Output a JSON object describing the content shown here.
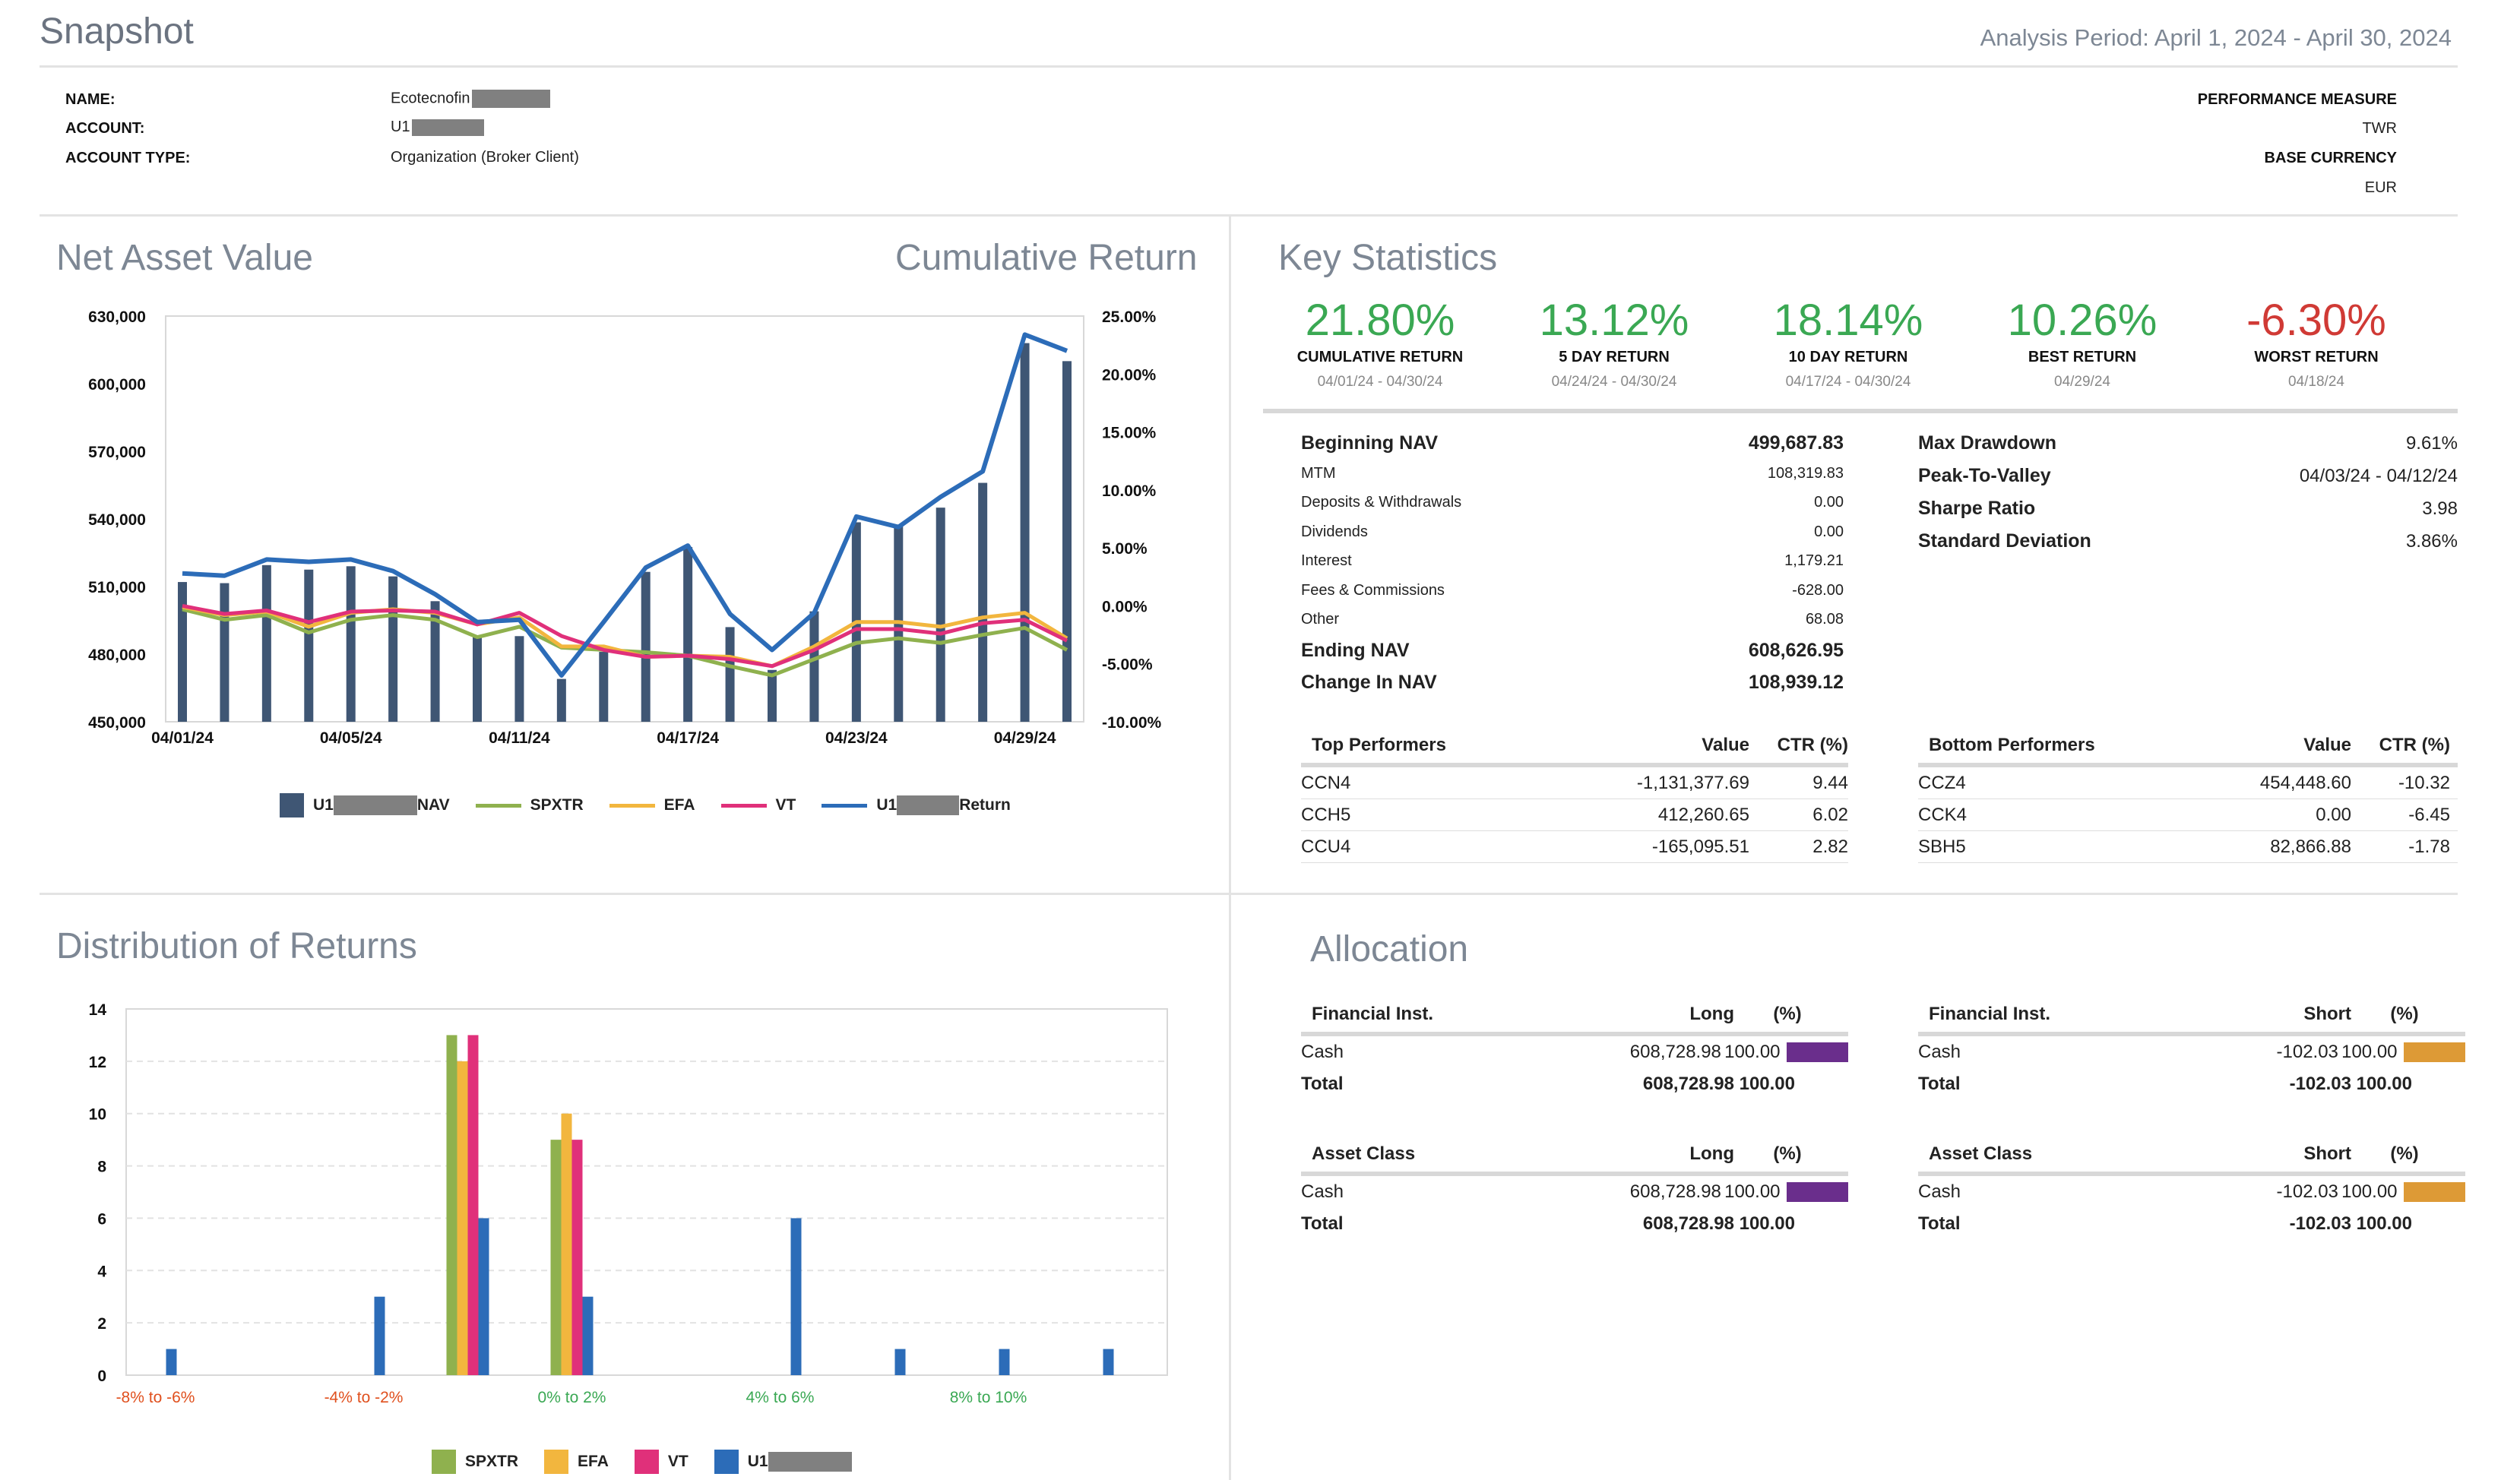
{
  "header": {
    "title": "Snapshot",
    "period": "Analysis Period: April 1, 2024 - April 30, 2024"
  },
  "account": {
    "name_label": "NAME:",
    "name_value": "Ecotecnofin",
    "account_label": "ACCOUNT:",
    "account_value": "U1",
    "type_label": "ACCOUNT TYPE:",
    "type_value": "Organization (Broker Client)",
    "perf_label": "PERFORMANCE MEASURE",
    "perf_value": "TWR",
    "currency_label": "BASE CURRENCY",
    "currency_value": "EUR"
  },
  "nav_chart": {
    "title_left": "Net Asset Value",
    "title_right": "Cumulative Return",
    "legend": [
      {
        "label_pre": "U1",
        "label_post": "NAV",
        "color": "#3f5674",
        "kind": "box"
      },
      {
        "label_pre": "SPXTR",
        "label_post": "",
        "color": "#8fb14e",
        "kind": "line"
      },
      {
        "label_pre": "EFA",
        "label_post": "",
        "color": "#f2b63e",
        "kind": "line"
      },
      {
        "label_pre": "VT",
        "label_post": "",
        "color": "#e0307a",
        "kind": "line"
      },
      {
        "label_pre": "U1",
        "label_post": "Return",
        "color": "#2c6cb8",
        "kind": "line"
      }
    ]
  },
  "key_stats": {
    "title": "Key Statistics",
    "tiles": [
      {
        "value": "21.80%",
        "label": "CUMULATIVE RETURN",
        "date": "04/01/24 - 04/30/24",
        "color": "#3aa853"
      },
      {
        "value": "13.12%",
        "label": "5 DAY RETURN",
        "date": "04/24/24 - 04/30/24",
        "color": "#3aa853"
      },
      {
        "value": "18.14%",
        "label": "10 DAY RETURN",
        "date": "04/17/24 - 04/30/24",
        "color": "#3aa853"
      },
      {
        "value": "10.26%",
        "label": "BEST RETURN",
        "date": "04/29/24",
        "color": "#3aa853"
      },
      {
        "value": "-6.30%",
        "label": "WORST RETURN",
        "date": "04/18/24",
        "color": "#d03a35"
      }
    ],
    "nav_rows": [
      {
        "label": "Beginning NAV",
        "value": "499,687.83",
        "bold": true
      },
      {
        "label": "MTM",
        "value": "108,319.83",
        "bold": false
      },
      {
        "label": "Deposits & Withdrawals",
        "value": "0.00",
        "bold": false
      },
      {
        "label": "Dividends",
        "value": "0.00",
        "bold": false
      },
      {
        "label": "Interest",
        "value": "1,179.21",
        "bold": false
      },
      {
        "label": "Fees & Commissions",
        "value": "-628.00",
        "bold": false
      },
      {
        "label": "Other",
        "value": "68.08",
        "bold": false
      },
      {
        "label": "Ending NAV",
        "value": "608,626.95",
        "bold": true
      },
      {
        "label": "Change In NAV",
        "value": "108,939.12",
        "bold": true
      }
    ],
    "risk_rows": [
      {
        "label": "Max Drawdown",
        "value": "9.61%"
      },
      {
        "label": "Peak-To-Valley",
        "value": "04/03/24 - 04/12/24"
      },
      {
        "label": "Sharpe Ratio",
        "value": "3.98"
      },
      {
        "label": "Standard Deviation",
        "value": "3.86%"
      }
    ],
    "top": {
      "headers": [
        "Top Performers",
        "Value",
        "CTR (%)"
      ],
      "rows": [
        [
          "CCN4",
          "-1,131,377.69",
          "9.44"
        ],
        [
          "CCH5",
          "412,260.65",
          "6.02"
        ],
        [
          "CCU4",
          "-165,095.51",
          "2.82"
        ]
      ]
    },
    "bottom": {
      "headers": [
        "Bottom Performers",
        "Value",
        "CTR (%)"
      ],
      "rows": [
        [
          "CCZ4",
          "454,448.60",
          "-10.32"
        ],
        [
          "CCK4",
          "0.00",
          "-6.45"
        ],
        [
          "SBH5",
          "82,866.88",
          "-1.78"
        ]
      ]
    }
  },
  "distribution": {
    "title": "Distribution of Returns",
    "legend": [
      {
        "label": "SPXTR",
        "color": "#8fb14e"
      },
      {
        "label": "EFA",
        "color": "#f2b63e"
      },
      {
        "label": "VT",
        "color": "#e0307a"
      },
      {
        "label": "U1",
        "color": "#2c6cb8"
      }
    ]
  },
  "allocation": {
    "title": "Allocation",
    "long_fin": {
      "headers": [
        "Financial Inst.",
        "Long",
        "(%)"
      ],
      "rows": [
        [
          "Cash",
          "608,728.98",
          "100.00"
        ]
      ],
      "total": [
        "Total",
        "608,728.98",
        "100.00"
      ],
      "color": "#6a2e8c"
    },
    "short_fin": {
      "headers": [
        "Financial Inst.",
        "Short",
        "(%)"
      ],
      "rows": [
        [
          "Cash",
          "-102.03",
          "100.00"
        ]
      ],
      "total": [
        "Total",
        "-102.03",
        "100.00"
      ],
      "color": "#dd9a36"
    },
    "long_asset": {
      "headers": [
        "Asset Class",
        "Long",
        "(%)"
      ],
      "rows": [
        [
          "Cash",
          "608,728.98",
          "100.00"
        ]
      ],
      "total": [
        "Total",
        "608,728.98",
        "100.00"
      ],
      "color": "#6a2e8c"
    },
    "short_asset": {
      "headers": [
        "Asset Class",
        "Short",
        "(%)"
      ],
      "rows": [
        [
          "Cash",
          "-102.03",
          "100.00"
        ]
      ],
      "total": [
        "Total",
        "-102.03",
        "100.00"
      ],
      "color": "#dd9a36"
    }
  },
  "chart_data": [
    {
      "type": "bar",
      "title": "Net Asset Value",
      "categories": [
        "04/01/24",
        "04/02/24",
        "04/03/24",
        "04/04/24",
        "04/05/24",
        "04/08/24",
        "04/09/24",
        "04/10/24",
        "04/11/24",
        "04/12/24",
        "04/15/24",
        "04/16/24",
        "04/17/24",
        "04/18/24",
        "04/19/24",
        "04/22/24",
        "04/23/24",
        "04/24/24",
        "04/25/24",
        "04/26/24",
        "04/29/24",
        "04/30/24"
      ],
      "x_tick_labels": [
        "04/01/24",
        "04/05/24",
        "04/11/24",
        "04/17/24",
        "04/23/24",
        "04/29/24"
      ],
      "y_ticks": [
        "630,000",
        "600,000",
        "570,000",
        "540,000",
        "510,000",
        "480,000",
        "450,000"
      ],
      "y2_ticks": [
        "25.00%",
        "20.00%",
        "15.00%",
        "10.00%",
        "5.00%",
        "0.00%",
        "-5.00%",
        "-10.00%"
      ],
      "ylim": [
        450000,
        630000
      ],
      "y2lim": [
        -10,
        25
      ],
      "series": [
        {
          "name": "NAV",
          "kind": "bar",
          "axis": "left",
          "values": [
            512000,
            511500,
            519500,
            517500,
            519000,
            514500,
            503500,
            487500,
            488000,
            469000,
            481000,
            516500,
            527500,
            492000,
            473000,
            499000,
            538500,
            537500,
            545000,
            556000,
            618000,
            610000
          ]
        },
        {
          "name": "SPXTR",
          "kind": "line",
          "axis": "right",
          "values": [
            -0.3,
            -1.2,
            -0.8,
            -2.3,
            -1.2,
            -0.8,
            -1.2,
            -2.7,
            -1.8,
            -3.6,
            -3.8,
            -4.0,
            -4.3,
            -5.2,
            -6.0,
            -4.6,
            -3.2,
            -2.8,
            -3.2,
            -2.5,
            -1.9,
            -3.8
          ]
        },
        {
          "name": "EFA",
          "kind": "line",
          "axis": "right",
          "values": [
            -0.1,
            -0.8,
            -0.5,
            -1.8,
            -0.6,
            -0.3,
            -0.6,
            -1.6,
            -1.0,
            -3.5,
            -3.5,
            -4.4,
            -4.3,
            -4.4,
            -5.2,
            -3.5,
            -1.4,
            -1.4,
            -1.8,
            -1.0,
            -0.6,
            -2.8
          ]
        },
        {
          "name": "VT",
          "kind": "line",
          "axis": "right",
          "values": [
            0.0,
            -0.7,
            -0.4,
            -1.4,
            -0.5,
            -0.4,
            -0.5,
            -1.6,
            -0.6,
            -2.6,
            -3.8,
            -4.4,
            -4.3,
            -4.6,
            -5.2,
            -3.8,
            -2.0,
            -2.0,
            -2.4,
            -1.5,
            -1.2,
            -3.0
          ]
        },
        {
          "name": "Return",
          "kind": "line",
          "axis": "right",
          "values": [
            2.8,
            2.6,
            4.0,
            3.8,
            4.0,
            3.0,
            1.0,
            -1.4,
            -1.2,
            -6.0,
            -1.4,
            3.3,
            5.2,
            -0.7,
            -3.8,
            -0.6,
            7.7,
            6.8,
            9.4,
            11.6,
            23.4,
            22.0
          ]
        }
      ]
    },
    {
      "type": "bar",
      "title": "Distribution of Returns",
      "categories": [
        "-8% to -6%",
        "-6% to -4%",
        "-4% to -2%",
        "-2% to 0%",
        "0% to 2%",
        "2% to 4%",
        "4% to 6%",
        "6% to 8%",
        "8% to 10%",
        "10% to 12%"
      ],
      "x_tick_labels": [
        "-8% to -6%",
        "-4% to -2%",
        "0% to 2%",
        "4% to 6%",
        "8% to 10%"
      ],
      "x_tick_colors": [
        "#e0501e",
        "#e0501e",
        "#3aa853",
        "#3aa853",
        "#3aa853"
      ],
      "y_ticks": [
        0,
        2,
        4,
        6,
        8,
        10,
        12,
        14
      ],
      "ylim": [
        0,
        14
      ],
      "series": [
        {
          "name": "SPXTR",
          "values": [
            0,
            0,
            0,
            13,
            9,
            0,
            0,
            0,
            0,
            0
          ]
        },
        {
          "name": "EFA",
          "values": [
            0,
            0,
            0,
            12,
            10,
            0,
            0,
            0,
            0,
            0
          ]
        },
        {
          "name": "VT",
          "values": [
            0,
            0,
            0,
            13,
            9,
            0,
            0,
            0,
            0,
            0
          ]
        },
        {
          "name": "U1",
          "values": [
            1,
            0,
            3,
            6,
            3,
            0,
            6,
            1,
            1,
            1
          ]
        }
      ]
    }
  ]
}
